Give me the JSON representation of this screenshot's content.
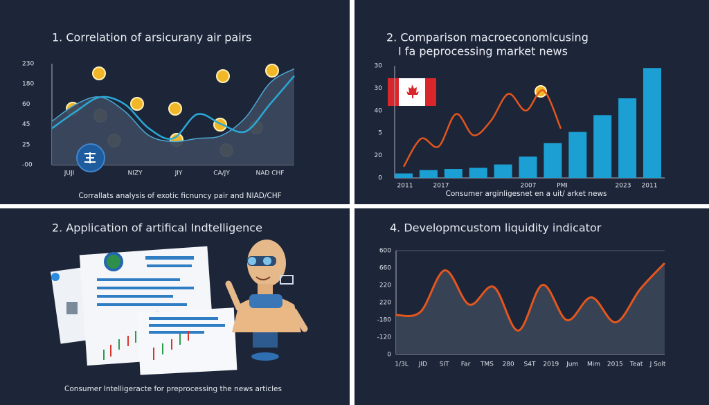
{
  "chart_data": [
    {
      "type": "area-line",
      "title": "1. Correlation of arsicurany air pairs",
      "caption": "Corrallats analysis of exotic ficnuncy pair and NIAD/CHF",
      "ylabels": [
        "230",
        "180",
        "60",
        "45",
        "25",
        "-00"
      ],
      "xlabels": [
        "JUJI",
        "NIZY",
        "JIY",
        "CA/JY",
        "NAD CHF"
      ],
      "ylim": [
        0,
        100
      ],
      "series": [
        {
          "kind": "area",
          "color": "#3b475c",
          "stroke": "#4aa8d4",
          "values": [
            43,
            60,
            67,
            53,
            29,
            23,
            26,
            29,
            47,
            81,
            95
          ]
        },
        {
          "kind": "line",
          "color": "#2aa9d8",
          "values": [
            36,
            53,
            67,
            60,
            36,
            26,
            50,
            40,
            33,
            60,
            88
          ]
        }
      ]
    },
    {
      "type": "bar-line",
      "title": "2. Comparison macroeconomlcusing",
      "subtitle": "I fa peprocessing market news",
      "caption": "Consumer arginligesnet en a uit/ arket news",
      "ylabels": [
        "30",
        "30",
        "40",
        "5",
        "20",
        "0"
      ],
      "xlabels": [
        "2011",
        "2017",
        "2007",
        "PMI",
        "2023",
        "2011"
      ],
      "ylim": [
        0,
        100
      ],
      "series": [
        {
          "kind": "bar",
          "color": "#1c9fd2",
          "values": [
            4,
            7,
            8,
            9,
            12,
            19,
            31,
            41,
            56,
            71,
            98
          ]
        },
        {
          "kind": "line",
          "color": "#e4561d",
          "values": [
            10,
            35,
            28,
            57,
            38,
            51,
            75,
            60,
            78,
            44
          ]
        }
      ]
    },
    {
      "type": "area-line",
      "title": "4. Developmcustom liquidity indicator",
      "ylabels": [
        "600",
        "660",
        "220",
        "220",
        "-180",
        "-120",
        "0"
      ],
      "xlabels": [
        "1/3L",
        "JID",
        "SIT",
        "Far",
        "TMS",
        "280",
        "S4T",
        "2019",
        "Jum",
        "Mim",
        "2015",
        "Teat",
        "J Solt"
      ],
      "ylim": [
        0,
        100
      ],
      "series": [
        {
          "kind": "area",
          "color": "#3a4356",
          "stroke": "#e4561d",
          "values": [
            38,
            41,
            81,
            48,
            65,
            23,
            67,
            33,
            55,
            31,
            63,
            88
          ]
        }
      ]
    }
  ],
  "illustration": {
    "title": "2. Application of artifical Indtelligence",
    "caption": "Consumer Intelligeracte for preprocessing the news articles"
  }
}
